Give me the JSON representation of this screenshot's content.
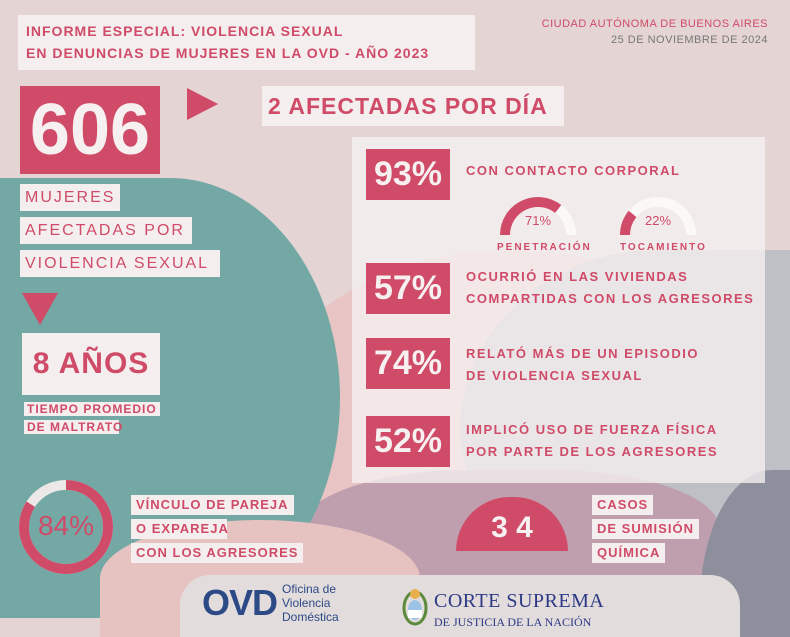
{
  "header": {
    "title_line1": "INFORME ESPECIAL: VIOLENCIA SEXUAL",
    "title_line2": "EN DENUNCIAS DE MUJERES EN LA OVD - AÑO 2023",
    "location": "CIUDAD AUTÓNOMA DE BUENOS AIRES",
    "date": "25 DE NOVIEMBRE DE 2024"
  },
  "total": {
    "value": "606",
    "label_lines": [
      "MUJERES",
      "AFECTADAS POR",
      "VIOLENCIA SEXUAL"
    ]
  },
  "per_day": "2 AFECTADAS POR DÍA",
  "duration": {
    "value": "8 AÑOS",
    "label_line1": "TIEMPO PROMEDIO",
    "label_line2": "DE MALTRATO"
  },
  "partner": {
    "value": "84%",
    "fraction": 0.84,
    "label_lines": [
      "VÍNCULO DE PAREJA",
      "O EXPAREJA",
      "CON LOS AGRESORES"
    ]
  },
  "stats": [
    {
      "value": "93%",
      "line1": "CON CONTACTO CORPORAL",
      "line2": ""
    },
    {
      "value": "57%",
      "line1": "OCURRIÓ EN LAS VIVIENDAS",
      "line2": "COMPARTIDAS CON LOS AGRESORES"
    },
    {
      "value": "74%",
      "line1": "RELATÓ MÁS DE UN EPISODIO",
      "line2": "DE VIOLENCIA SEXUAL"
    },
    {
      "value": "52%",
      "line1": "IMPLICÓ USO DE FUERZA FÍSICA",
      "line2": "POR PARTE DE LOS AGRESORES"
    }
  ],
  "gauges": [
    {
      "value": "71%",
      "fraction": 0.71,
      "label": "PENETRACIÓN"
    },
    {
      "value": "22%",
      "fraction": 0.22,
      "label": "TOCAMIENTO"
    }
  ],
  "chemical": {
    "value": "3 4",
    "label_lines": [
      "CASOS",
      "DE SUMISIÓN",
      "QUÍMICA"
    ]
  },
  "logos": {
    "ovd_mark": "OVD",
    "ovd_line1": "Oficina de",
    "ovd_line2": "Violencia",
    "ovd_line3": "Doméstica",
    "csjn_line1": "CORTE SUPREMA",
    "csjn_line2": "DE JUSTICIA DE LA NACIÓN"
  },
  "colors": {
    "accent": "#cf4b68",
    "teal": "#74a8a5",
    "background": "#e4d4d4",
    "gray": "#8d8f9c"
  }
}
